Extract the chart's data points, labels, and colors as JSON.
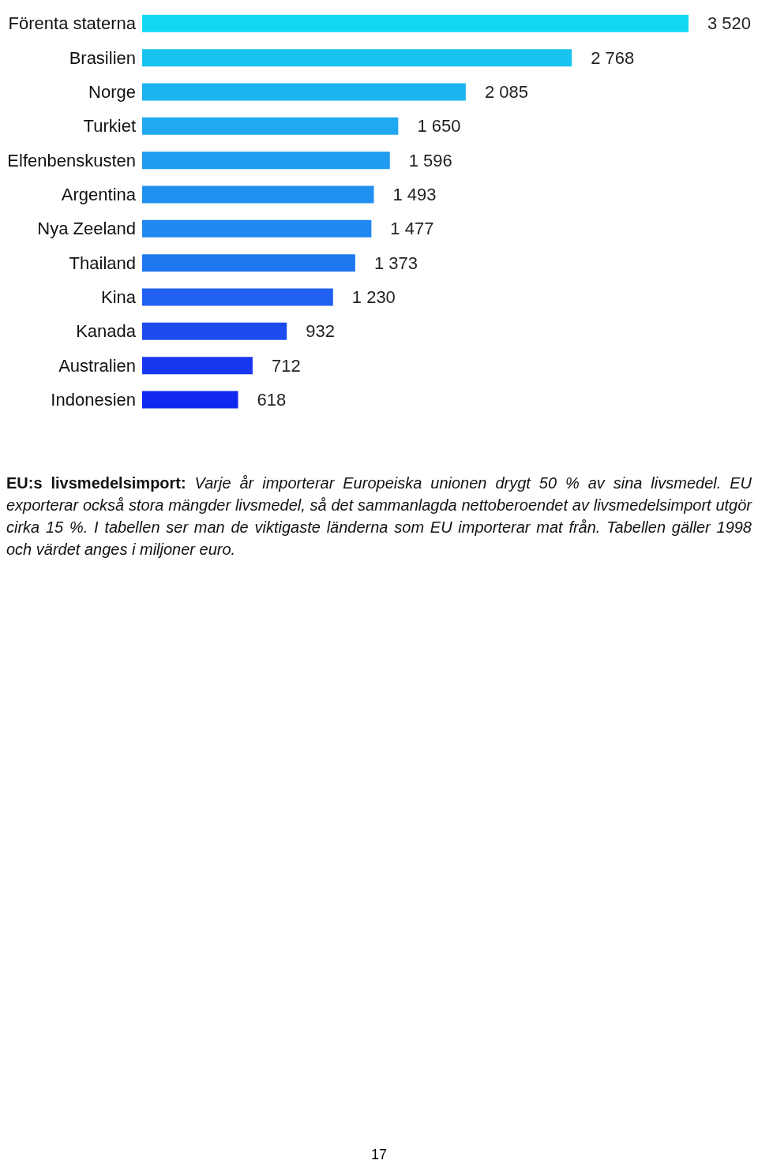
{
  "chart_data": {
    "type": "bar",
    "orientation": "horizontal",
    "title": "EU:s livsmedelsimport:",
    "categories": [
      "Förenta staterna",
      "Brasilien",
      "Norge",
      "Turkiet",
      "Elfenbenskusten",
      "Argentina",
      "Nya Zeeland",
      "Thailand",
      "Kina",
      "Kanada",
      "Australien",
      "Indonesien"
    ],
    "values": [
      3520,
      2768,
      2085,
      1650,
      1596,
      1493,
      1477,
      1373,
      1230,
      932,
      712,
      618
    ],
    "value_labels": [
      "3 520",
      "2 768",
      "2 085",
      "1 650",
      "1 596",
      "1 493",
      "1 477",
      "1 373",
      "1 230",
      "932",
      "712",
      "618"
    ],
    "colors": [
      "#10d8f4",
      "#18c4f0",
      "#1cb4f0",
      "#20a8f0",
      "#209cf0",
      "#2090f0",
      "#2088f0",
      "#2078f0",
      "#2060f0",
      "#1c4cf0",
      "#1838f0",
      "#1028f0"
    ],
    "annotations": [
      "Varje år importerar Europeiska unionen drygt 50 % av sina livsmedel. EU exporterar också stora mängder livsmedel, så det sammanlagda nettoberoendet av livsmedelsimport utgör cirka 15 %. I tabellen ser man de viktigaste länderna som EU importerar mat från. Tabellen gäller 1998 och värdet anges i miljoner euro.",
      "17"
    ]
  }
}
